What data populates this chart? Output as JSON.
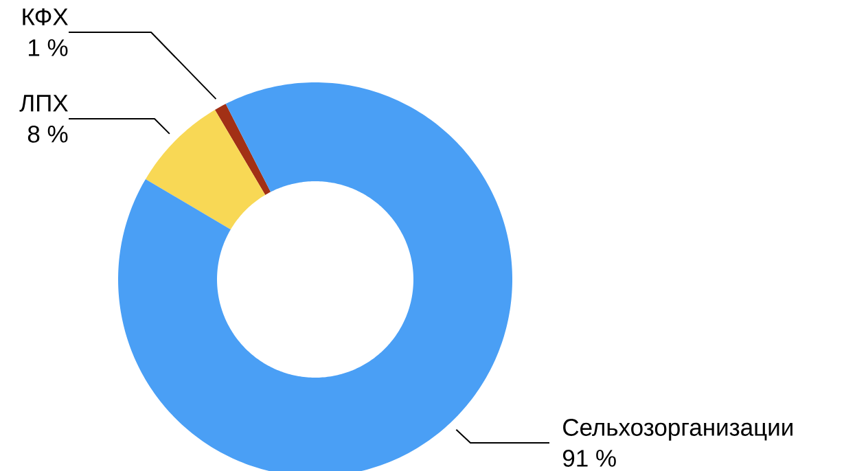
{
  "chart_data": {
    "type": "donut",
    "categories": [
      "КФХ",
      "ЛПХ",
      "Сельхозорганизации"
    ],
    "values": [
      1,
      8,
      91
    ],
    "value_labels": [
      "1 %",
      "8 %",
      "91 %"
    ],
    "colors": [
      "#a23015",
      "#f8d855",
      "#4a9ff5"
    ]
  }
}
